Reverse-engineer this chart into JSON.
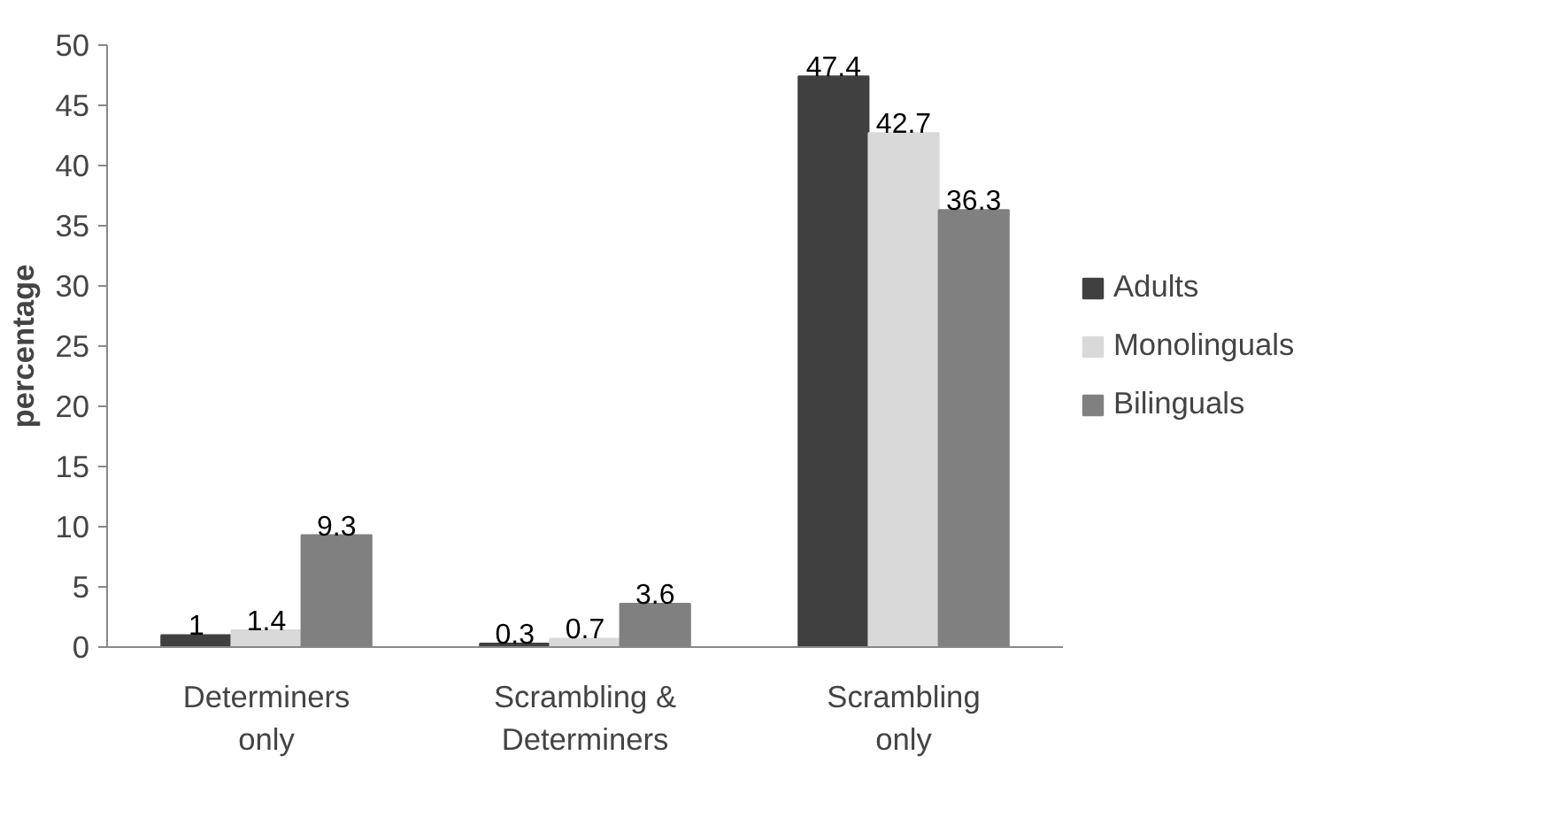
{
  "chart_data": {
    "type": "bar",
    "ylabel": "percentage",
    "categories": [
      "Determiners only",
      "Scrambling & Determiners",
      "Scrambling only"
    ],
    "series": [
      {
        "name": "Adults",
        "color": "#404040",
        "values": [
          1,
          0.3,
          47.4
        ]
      },
      {
        "name": "Monolinguals",
        "color": "#d9d9d9",
        "values": [
          1.4,
          0.7,
          42.7
        ]
      },
      {
        "name": "Bilinguals",
        "color": "#808080",
        "values": [
          9.3,
          3.6,
          36.3
        ]
      }
    ],
    "ylim": [
      0,
      50
    ],
    "yticks": [
      0,
      5,
      10,
      15,
      20,
      25,
      30,
      35,
      40,
      45,
      50
    ],
    "data_labels": true,
    "grid": false,
    "legend": "right"
  }
}
